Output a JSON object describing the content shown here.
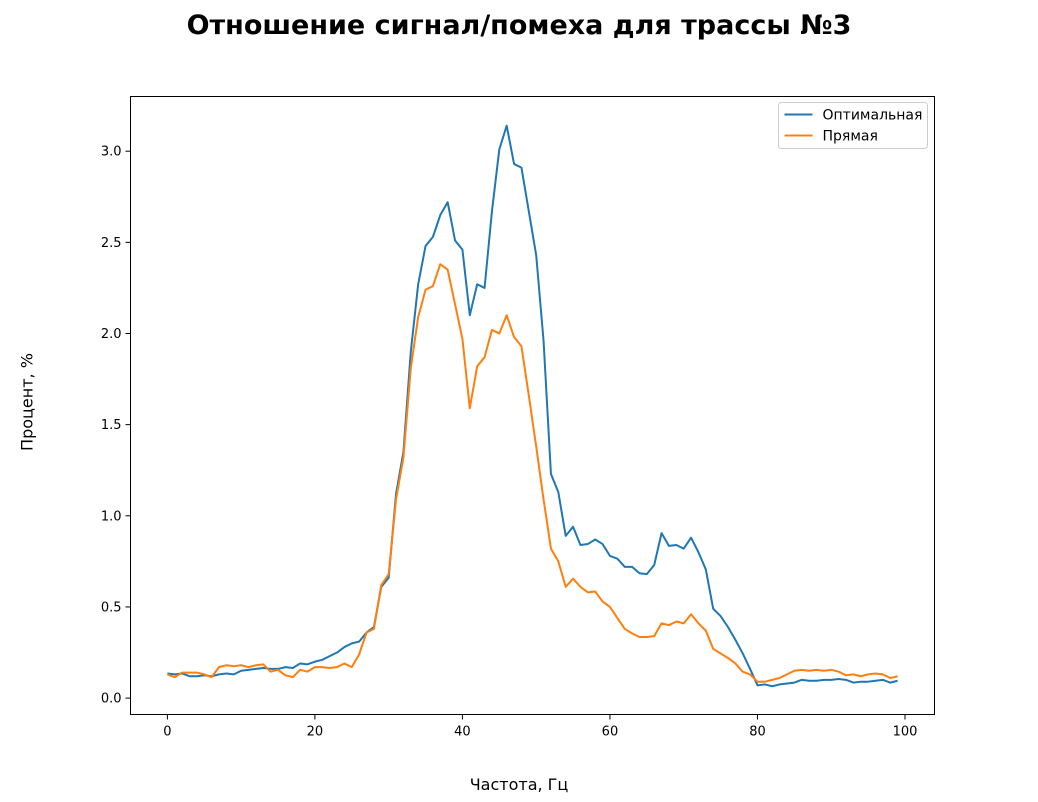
{
  "chart_data": {
    "type": "line",
    "title": "Отношение сигнал/помеха для трассы №3",
    "xlabel": "Частота, Гц",
    "ylabel": "Процент, %",
    "xlim": [
      -5,
      104
    ],
    "ylim": [
      -0.09,
      3.3
    ],
    "xticks": [
      0,
      20,
      40,
      60,
      80,
      100
    ],
    "yticks": [
      0.0,
      0.5,
      1.0,
      1.5,
      2.0,
      2.5,
      3.0
    ],
    "xtick_labels": [
      "0",
      "20",
      "40",
      "60",
      "80",
      "100"
    ],
    "ytick_labels": [
      "0.0",
      "0.5",
      "1.0",
      "1.5",
      "2.0",
      "2.5",
      "3.0"
    ],
    "grid": false,
    "legend_position": "top-right",
    "x_start": 0,
    "x_step": 1,
    "series": [
      {
        "name": "Оптимальная",
        "color": "#1f77b4",
        "values": [
          0.135,
          0.13,
          0.135,
          0.12,
          0.12,
          0.125,
          0.12,
          0.13,
          0.135,
          0.13,
          0.15,
          0.155,
          0.16,
          0.165,
          0.16,
          0.16,
          0.17,
          0.165,
          0.19,
          0.185,
          0.2,
          0.21,
          0.23,
          0.25,
          0.28,
          0.3,
          0.31,
          0.36,
          0.39,
          0.61,
          0.66,
          1.12,
          1.35,
          1.9,
          2.27,
          2.48,
          2.53,
          2.65,
          2.72,
          2.51,
          2.46,
          2.1,
          2.27,
          2.25,
          2.67,
          3.01,
          3.14,
          2.93,
          2.91,
          2.67,
          2.43,
          1.96,
          1.23,
          1.13,
          0.89,
          0.94,
          0.84,
          0.845,
          0.87,
          0.845,
          0.78,
          0.765,
          0.72,
          0.72,
          0.685,
          0.68,
          0.73,
          0.905,
          0.835,
          0.84,
          0.82,
          0.88,
          0.8,
          0.705,
          0.49,
          0.45,
          0.39,
          0.32,
          0.245,
          0.16,
          0.07,
          0.075,
          0.065,
          0.075,
          0.08,
          0.085,
          0.1,
          0.095,
          0.095,
          0.1,
          0.1,
          0.105,
          0.1,
          0.085,
          0.09,
          0.09,
          0.095,
          0.1,
          0.085,
          0.095
        ]
      },
      {
        "name": "Прямая",
        "color": "#ff7f0e",
        "values": [
          0.13,
          0.115,
          0.14,
          0.14,
          0.14,
          0.13,
          0.115,
          0.17,
          0.18,
          0.175,
          0.18,
          0.17,
          0.18,
          0.185,
          0.145,
          0.155,
          0.125,
          0.115,
          0.155,
          0.145,
          0.17,
          0.17,
          0.165,
          0.17,
          0.19,
          0.17,
          0.24,
          0.36,
          0.38,
          0.62,
          0.68,
          1.09,
          1.32,
          1.81,
          2.09,
          2.24,
          2.26,
          2.38,
          2.35,
          2.16,
          1.97,
          1.59,
          1.82,
          1.87,
          2.02,
          2.0,
          2.1,
          1.98,
          1.93,
          1.66,
          1.38,
          1.09,
          0.82,
          0.75,
          0.61,
          0.655,
          0.61,
          0.58,
          0.585,
          0.53,
          0.5,
          0.44,
          0.38,
          0.355,
          0.335,
          0.335,
          0.34,
          0.41,
          0.4,
          0.42,
          0.41,
          0.46,
          0.41,
          0.37,
          0.27,
          0.245,
          0.22,
          0.19,
          0.145,
          0.13,
          0.09,
          0.09,
          0.1,
          0.11,
          0.13,
          0.15,
          0.155,
          0.15,
          0.155,
          0.15,
          0.155,
          0.145,
          0.125,
          0.13,
          0.12,
          0.13,
          0.135,
          0.13,
          0.11,
          0.12
        ]
      }
    ]
  }
}
